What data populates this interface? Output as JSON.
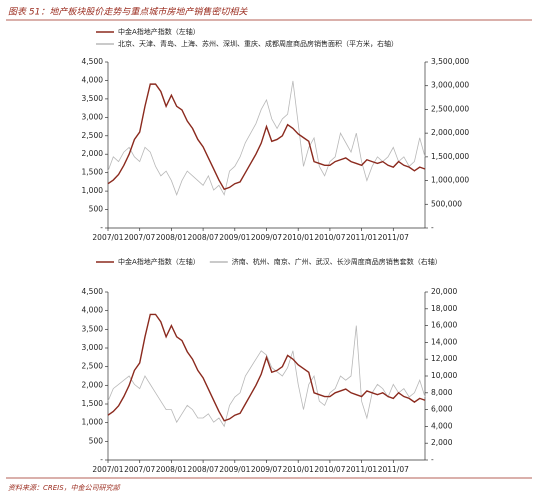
{
  "title": "图表 51：地产板块股价走势与重点城市房地产销售密切相关",
  "source": "资料来源：CREIS，中金公司研究部",
  "chart_data": [
    {
      "type": "line",
      "categories": [
        "2007/01",
        null,
        null,
        null,
        null,
        null,
        "2007/07",
        null,
        null,
        null,
        null,
        null,
        "2008/01",
        null,
        null,
        null,
        null,
        null,
        "2008/07",
        null,
        null,
        null,
        null,
        null,
        "2009/01",
        null,
        null,
        null,
        null,
        null,
        "2009/07",
        null,
        null,
        null,
        null,
        null,
        "2010/01",
        null,
        null,
        null,
        null,
        null,
        "2010/07",
        null,
        null,
        null,
        null,
        null,
        "2011/01",
        null,
        null,
        null,
        null,
        null,
        "2011/07",
        null,
        null,
        null,
        null,
        null,
        null
      ],
      "series": [
        {
          "name": "中金A指地产指数（左轴）",
          "color": "#8b2a1e",
          "axis": "y",
          "values": [
            1200,
            1300,
            1450,
            1700,
            2000,
            2400,
            2600,
            3300,
            3900,
            3900,
            3700,
            3300,
            3600,
            3300,
            3200,
            2900,
            2700,
            2400,
            2200,
            1900,
            1600,
            1300,
            1050,
            1100,
            1200,
            1250,
            1500,
            1750,
            2000,
            2300,
            2750,
            2350,
            2400,
            2500,
            2800,
            2700,
            2550,
            2450,
            2350,
            1800,
            1750,
            1700,
            1700,
            1800,
            1850,
            1900,
            1800,
            1750,
            1700,
            1850,
            1800,
            1750,
            1800,
            1700,
            1650,
            1800,
            1700,
            1650,
            1550,
            1650,
            1600
          ]
        },
        {
          "name": "北京、天津、青岛、上海、苏州、深圳、重庆、成都周度商品房销售面积（平方米，右轴）",
          "color": "#b8b8b8",
          "axis": "y2",
          "values": [
            1200000,
            1500000,
            1400000,
            1600000,
            1700000,
            1500000,
            1400000,
            1700000,
            1600000,
            1300000,
            1100000,
            1200000,
            1000000,
            700000,
            1000000,
            1200000,
            1100000,
            1000000,
            900000,
            1100000,
            800000,
            900000,
            700000,
            1200000,
            1300000,
            1500000,
            1800000,
            2000000,
            2200000,
            2500000,
            2700000,
            2300000,
            2100000,
            2300000,
            2400000,
            3100000,
            2200000,
            1300000,
            1700000,
            1900000,
            1300000,
            1100000,
            1400000,
            1500000,
            2000000,
            1800000,
            1600000,
            2000000,
            1400000,
            1000000,
            1300000,
            1500000,
            1400000,
            1500000,
            1700000,
            1400000,
            1500000,
            1300000,
            1400000,
            1900000,
            1500000
          ]
        }
      ],
      "ylim": [
        0,
        4500
      ],
      "yticks": [
        {
          "value": 0,
          "label": "-"
        },
        500,
        {
          "value": 1000,
          "label": "1,000"
        },
        {
          "value": 1500,
          "label": "1,500"
        },
        {
          "value": 2000,
          "label": "2,000"
        },
        {
          "value": 2500,
          "label": "2,500"
        },
        {
          "value": 3000,
          "label": "3,000"
        },
        {
          "value": 3500,
          "label": "3,500"
        },
        {
          "value": 4000,
          "label": "4,000"
        },
        {
          "value": 4500,
          "label": "4,500"
        }
      ],
      "y2lim": [
        0,
        3500000
      ],
      "y2ticks": [
        {
          "value": 0,
          "label": "-"
        },
        {
          "value": 500000,
          "label": "500,000"
        },
        {
          "value": 1000000,
          "label": "1,000,000"
        },
        {
          "value": 1500000,
          "label": "1,500,000"
        },
        {
          "value": 2000000,
          "label": "2,000,000"
        },
        {
          "value": 2500000,
          "label": "2,500,000"
        },
        {
          "value": 3000000,
          "label": "3,000,000"
        },
        {
          "value": 3500000,
          "label": "3,500,000"
        }
      ],
      "grid": false
    },
    {
      "type": "line",
      "categories": [
        "2007/01",
        null,
        null,
        null,
        null,
        null,
        "2007/07",
        null,
        null,
        null,
        null,
        null,
        "2008/01",
        null,
        null,
        null,
        null,
        null,
        "2008/07",
        null,
        null,
        null,
        null,
        null,
        "2009/01",
        null,
        null,
        null,
        null,
        null,
        "2009/07",
        null,
        null,
        null,
        null,
        null,
        "2010/01",
        null,
        null,
        null,
        null,
        null,
        "2010/07",
        null,
        null,
        null,
        null,
        null,
        "2011/01",
        null,
        null,
        null,
        null,
        null,
        "2011/07",
        null,
        null,
        null,
        null,
        null,
        null
      ],
      "series": [
        {
          "name": "中金A指地产指数（左轴）",
          "color": "#8b2a1e",
          "axis": "y",
          "values": [
            1200,
            1300,
            1450,
            1700,
            2000,
            2400,
            2600,
            3300,
            3900,
            3900,
            3700,
            3300,
            3600,
            3300,
            3200,
            2900,
            2700,
            2400,
            2200,
            1900,
            1600,
            1300,
            1050,
            1100,
            1200,
            1250,
            1500,
            1750,
            2000,
            2300,
            2750,
            2350,
            2400,
            2500,
            2800,
            2700,
            2550,
            2450,
            2350,
            1800,
            1750,
            1700,
            1700,
            1800,
            1850,
            1900,
            1800,
            1750,
            1700,
            1850,
            1800,
            1750,
            1800,
            1700,
            1650,
            1800,
            1700,
            1650,
            1550,
            1650,
            1600
          ]
        },
        {
          "name": "济南、杭州、南京、广州、武汉、长沙周度商品房销售套数（右轴）",
          "color": "#b8b8b8",
          "axis": "y2",
          "values": [
            7000,
            8500,
            9000,
            9500,
            10000,
            9000,
            8500,
            10000,
            9000,
            8000,
            7000,
            6000,
            6000,
            4500,
            5500,
            6500,
            6000,
            5000,
            5000,
            5500,
            4500,
            5000,
            4000,
            6500,
            7500,
            8000,
            10000,
            11000,
            12000,
            13000,
            12500,
            11000,
            10500,
            10000,
            11000,
            13000,
            9000,
            6000,
            9000,
            10000,
            7000,
            6500,
            8000,
            8500,
            10000,
            9500,
            10000,
            16000,
            7000,
            5000,
            8000,
            9000,
            8500,
            7500,
            9000,
            8000,
            8500,
            7500,
            8000,
            9500,
            7500
          ]
        }
      ],
      "ylim": [
        0,
        4500
      ],
      "yticks": [
        {
          "value": 0,
          "label": "-"
        },
        500,
        {
          "value": 1000,
          "label": "1,000"
        },
        {
          "value": 1500,
          "label": "1,500"
        },
        {
          "value": 2000,
          "label": "2,000"
        },
        {
          "value": 2500,
          "label": "2,500"
        },
        {
          "value": 3000,
          "label": "3,000"
        },
        {
          "value": 3500,
          "label": "3,500"
        },
        {
          "value": 4000,
          "label": "4,000"
        },
        {
          "value": 4500,
          "label": "4,500"
        }
      ],
      "y2lim": [
        0,
        20000
      ],
      "y2ticks": [
        {
          "value": 0,
          "label": "-"
        },
        {
          "value": 2000,
          "label": "2,000"
        },
        {
          "value": 4000,
          "label": "4,000"
        },
        {
          "value": 6000,
          "label": "6,000"
        },
        {
          "value": 8000,
          "label": "8,000"
        },
        {
          "value": 10000,
          "label": "10,000"
        },
        {
          "value": 12000,
          "label": "12,000"
        },
        {
          "value": 14000,
          "label": "14,000"
        },
        {
          "value": 16000,
          "label": "16,000"
        },
        {
          "value": 18000,
          "label": "18,000"
        },
        {
          "value": 20000,
          "label": "20,000"
        }
      ],
      "grid": false
    }
  ]
}
